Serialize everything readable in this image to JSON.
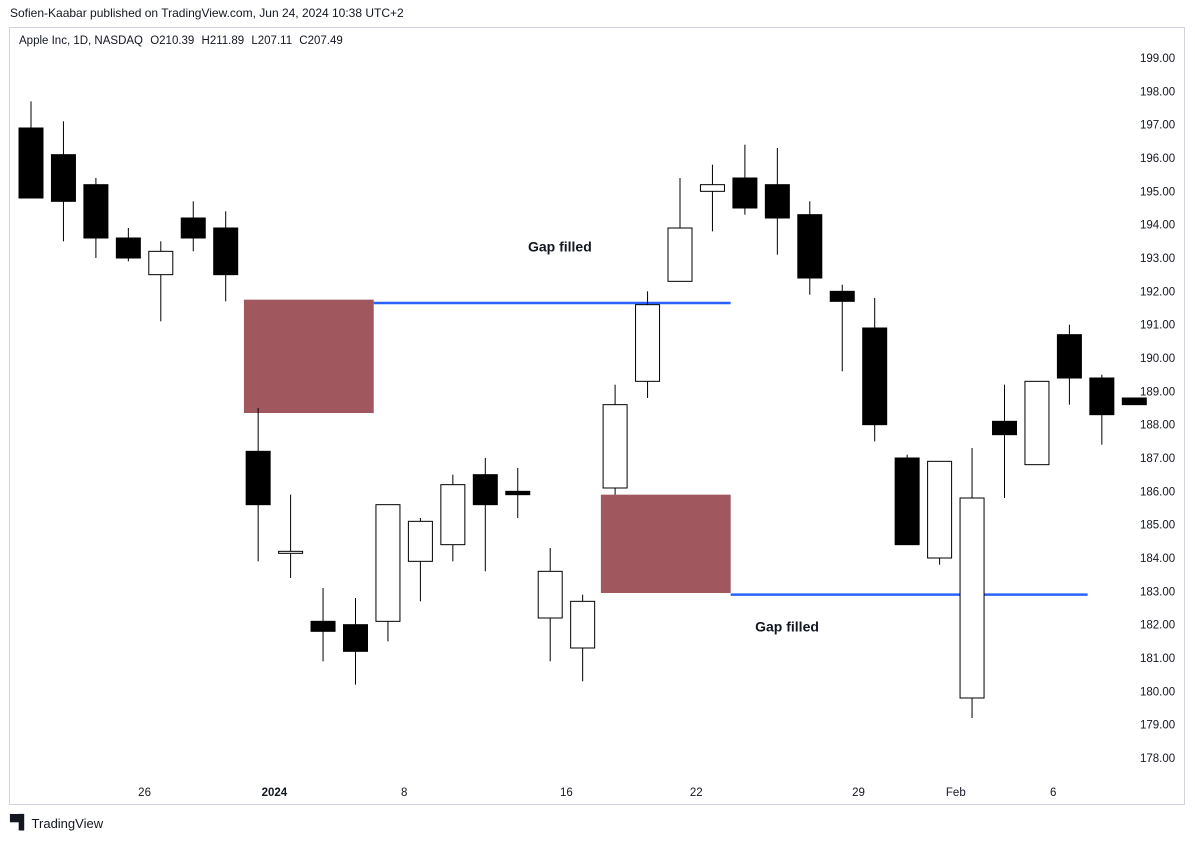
{
  "header": {
    "published_line": "Sofien-Kaabar published on TradingView.com, Jun 24, 2024 10:38 UTC+2"
  },
  "legend": {
    "symbol": "Apple Inc, 1D, NASDAQ",
    "open": "O210.39",
    "high": "H211.89",
    "low": "L207.11",
    "close": "C207.49"
  },
  "footer": {
    "brand": "TradingView",
    "logo_icon": "tradingview-logo-icon"
  },
  "colors": {
    "bear": "#000000",
    "bull": "#ffffff",
    "gap_box": "#a0585e",
    "level_line": "#2962ff",
    "frame": "#d1d4dc"
  },
  "chart_data": {
    "type": "candlestick",
    "y_range": [
      177.6,
      199.5
    ],
    "y_ticks": [
      "178.00",
      "179.00",
      "180.00",
      "181.00",
      "182.00",
      "183.00",
      "184.00",
      "185.00",
      "186.00",
      "187.00",
      "188.00",
      "189.00",
      "190.00",
      "191.00",
      "192.00",
      "193.00",
      "194.00",
      "195.00",
      "196.00",
      "197.00",
      "198.00",
      "199.00"
    ],
    "x_ticks": [
      {
        "label": "26",
        "index": 3.5,
        "bold": false
      },
      {
        "label": "2024",
        "index": 7.5,
        "bold": true
      },
      {
        "label": "8",
        "index": 11.5,
        "bold": false
      },
      {
        "label": "16",
        "index": 16.5,
        "bold": false
      },
      {
        "label": "22",
        "index": 20.5,
        "bold": false
      },
      {
        "label": "29",
        "index": 25.5,
        "bold": false
      },
      {
        "label": "Feb",
        "index": 28.5,
        "bold": false
      },
      {
        "label": "6",
        "index": 31.5,
        "bold": false
      }
    ],
    "candles": [
      {
        "o": 196.9,
        "h": 197.7,
        "l": 194.8,
        "c": 194.8
      },
      {
        "o": 196.1,
        "h": 197.1,
        "l": 193.5,
        "c": 194.7
      },
      {
        "o": 195.2,
        "h": 195.4,
        "l": 193.0,
        "c": 193.6
      },
      {
        "o": 193.6,
        "h": 193.9,
        "l": 192.9,
        "c": 193.0
      },
      {
        "o": 192.5,
        "h": 193.5,
        "l": 191.1,
        "c": 193.2
      },
      {
        "o": 194.2,
        "h": 194.7,
        "l": 193.2,
        "c": 193.6
      },
      {
        "o": 193.9,
        "h": 194.4,
        "l": 191.7,
        "c": 192.5
      },
      {
        "o": 187.2,
        "h": 188.5,
        "l": 183.9,
        "c": 185.6
      },
      {
        "o": 184.2,
        "h": 185.9,
        "l": 183.4,
        "c": 184.2
      },
      {
        "o": 182.1,
        "h": 183.1,
        "l": 180.9,
        "c": 181.8
      },
      {
        "o": 182.0,
        "h": 182.8,
        "l": 180.2,
        "c": 181.2
      },
      {
        "o": 182.1,
        "h": 185.6,
        "l": 181.5,
        "c": 185.6
      },
      {
        "o": 183.9,
        "h": 185.2,
        "l": 182.7,
        "c": 185.1
      },
      {
        "o": 184.4,
        "h": 186.5,
        "l": 183.9,
        "c": 186.2
      },
      {
        "o": 186.5,
        "h": 187.0,
        "l": 183.6,
        "c": 185.6
      },
      {
        "o": 186.0,
        "h": 186.7,
        "l": 185.2,
        "c": 185.9
      },
      {
        "o": 182.2,
        "h": 184.3,
        "l": 180.9,
        "c": 183.6
      },
      {
        "o": 181.3,
        "h": 182.9,
        "l": 180.3,
        "c": 182.7
      },
      {
        "o": 186.1,
        "h": 189.2,
        "l": 185.9,
        "c": 188.6
      },
      {
        "o": 189.3,
        "h": 192.0,
        "l": 188.8,
        "c": 191.6
      },
      {
        "o": 192.3,
        "h": 195.4,
        "l": 192.3,
        "c": 193.9
      },
      {
        "o": 195.0,
        "h": 195.8,
        "l": 193.8,
        "c": 195.2
      },
      {
        "o": 195.4,
        "h": 196.4,
        "l": 194.3,
        "c": 194.5
      },
      {
        "o": 195.2,
        "h": 196.3,
        "l": 193.1,
        "c": 194.2
      },
      {
        "o": 194.3,
        "h": 194.7,
        "l": 191.9,
        "c": 192.4
      },
      {
        "o": 192.0,
        "h": 192.2,
        "l": 189.6,
        "c": 191.7
      },
      {
        "o": 190.9,
        "h": 191.8,
        "l": 187.5,
        "c": 188.0
      },
      {
        "o": 187.0,
        "h": 187.1,
        "l": 184.4,
        "c": 184.4
      },
      {
        "o": 184.0,
        "h": 186.9,
        "l": 183.8,
        "c": 186.9
      },
      {
        "o": 179.8,
        "h": 187.3,
        "l": 179.2,
        "c": 185.8
      },
      {
        "o": 188.1,
        "h": 189.2,
        "l": 185.8,
        "c": 187.7
      },
      {
        "o": 186.8,
        "h": 189.3,
        "l": 186.8,
        "c": 189.3
      },
      {
        "o": 190.7,
        "h": 191.0,
        "l": 188.6,
        "c": 189.4
      },
      {
        "o": 189.4,
        "h": 189.5,
        "l": 187.4,
        "c": 188.3
      },
      {
        "o": 188.8,
        "h": 188.8,
        "l": 188.6,
        "c": 188.6
      }
    ],
    "gaps": [
      {
        "label": "Gap filled",
        "i_from": 6.5,
        "i_to": 10.5,
        "top": 191.75,
        "bottom": 188.35,
        "line_level": 191.65,
        "line_to": 21.5,
        "label_i": 15.5,
        "label_y": 193.2
      },
      {
        "label": "Gap filled",
        "i_from": 17.5,
        "i_to": 21.5,
        "top": 185.9,
        "bottom": 182.95,
        "line_level": 182.9,
        "line_to": 32.5,
        "label_i": 22.5,
        "label_y": 181.8
      }
    ]
  }
}
